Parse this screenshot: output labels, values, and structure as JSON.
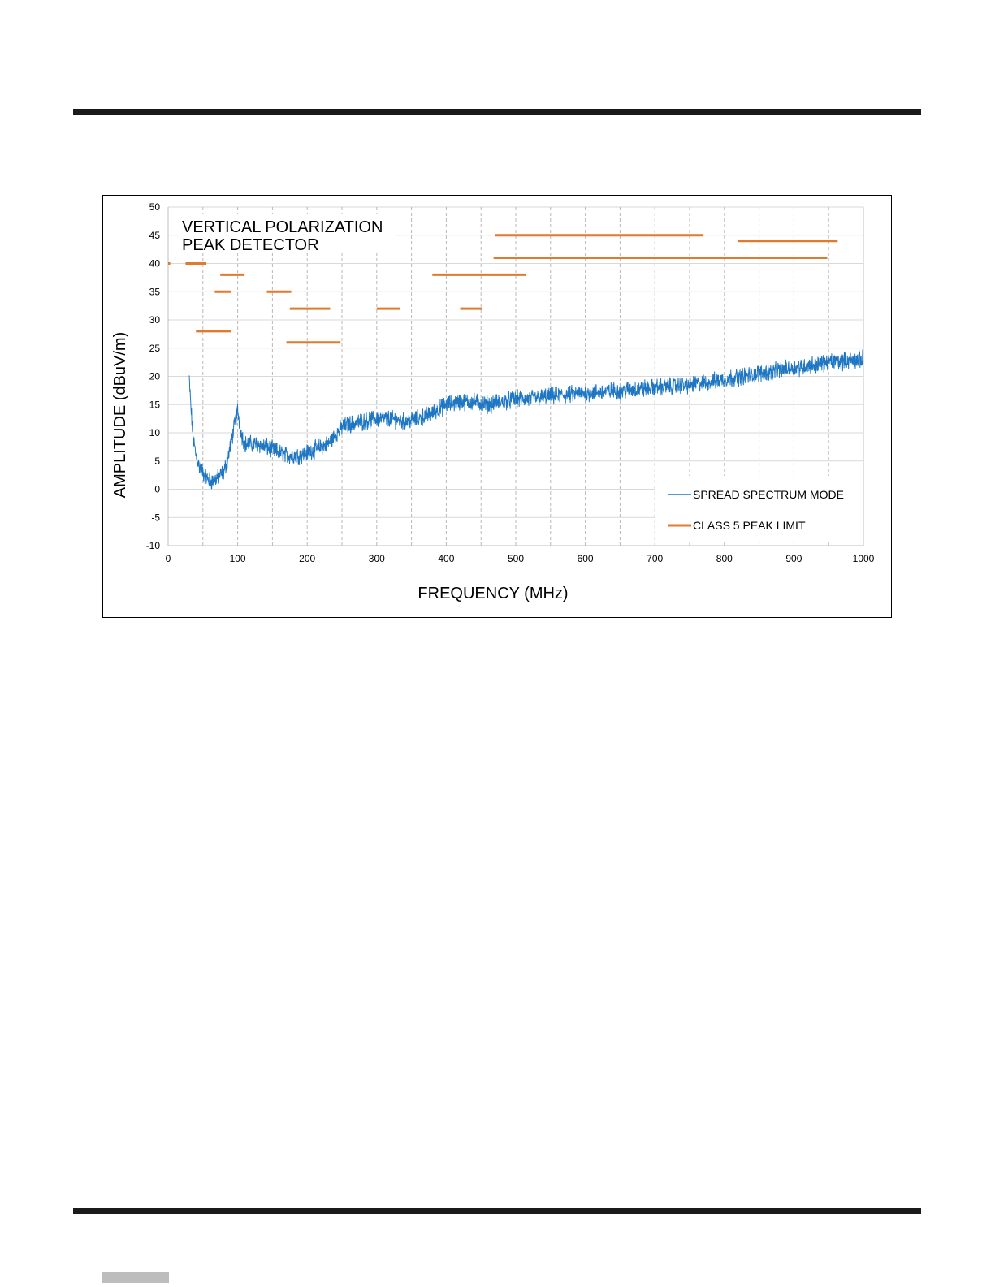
{
  "chart_data": {
    "type": "line",
    "title_lines": [
      "VERTICAL POLARIZATION",
      "PEAK DETECTOR"
    ],
    "xlabel": "FREQUENCY (MHz)",
    "ylabel": "AMPLITUDE (dBuV/m)",
    "xlim": [
      0,
      1000
    ],
    "ylim": [
      -10,
      50
    ],
    "xticks": [
      0,
      100,
      200,
      300,
      400,
      500,
      600,
      700,
      800,
      900,
      1000
    ],
    "yticks": [
      -10,
      -5,
      0,
      5,
      10,
      15,
      20,
      25,
      30,
      35,
      40,
      45,
      50
    ],
    "grid": {
      "horizontal": "solid",
      "vertical": "dashed",
      "vertical_step": 50
    },
    "legend_position": "bottom-right",
    "colors": {
      "spread": "#1f77c4",
      "limit": "#e07b2e"
    },
    "series": [
      {
        "name": "SPREAD SPECTRUM  MODE",
        "kind": "noisy-line",
        "noise_amplitude": 1.2,
        "envelope": [
          [
            30,
            20
          ],
          [
            33,
            14
          ],
          [
            36,
            9
          ],
          [
            40,
            6
          ],
          [
            45,
            4
          ],
          [
            50,
            3
          ],
          [
            55,
            2
          ],
          [
            60,
            1.5
          ],
          [
            65,
            1.5
          ],
          [
            70,
            2
          ],
          [
            75,
            2.5
          ],
          [
            80,
            3
          ],
          [
            85,
            5
          ],
          [
            90,
            8
          ],
          [
            95,
            11
          ],
          [
            100,
            14
          ],
          [
            105,
            10
          ],
          [
            110,
            8
          ],
          [
            120,
            8
          ],
          [
            130,
            8
          ],
          [
            140,
            7.5
          ],
          [
            150,
            7
          ],
          [
            160,
            6.5
          ],
          [
            170,
            6
          ],
          [
            180,
            6
          ],
          [
            190,
            6
          ],
          [
            200,
            6.5
          ],
          [
            210,
            7
          ],
          [
            220,
            7.5
          ],
          [
            230,
            8
          ],
          [
            240,
            9.5
          ],
          [
            250,
            11
          ],
          [
            260,
            11.5
          ],
          [
            280,
            12
          ],
          [
            300,
            12.5
          ],
          [
            320,
            12.5
          ],
          [
            340,
            12
          ],
          [
            360,
            12.5
          ],
          [
            380,
            13.5
          ],
          [
            400,
            15
          ],
          [
            420,
            15.5
          ],
          [
            440,
            15.5
          ],
          [
            460,
            15
          ],
          [
            480,
            15.5
          ],
          [
            500,
            16
          ],
          [
            520,
            16
          ],
          [
            550,
            16.5
          ],
          [
            600,
            17
          ],
          [
            650,
            17.5
          ],
          [
            700,
            18
          ],
          [
            750,
            18.5
          ],
          [
            780,
            19
          ],
          [
            800,
            19.5
          ],
          [
            850,
            20.5
          ],
          [
            900,
            21.5
          ],
          [
            950,
            22.5
          ],
          [
            1000,
            23
          ]
        ]
      },
      {
        "name": "CLASS 5 PEAK LIMIT",
        "kind": "segments",
        "segments": [
          {
            "x1": 0,
            "x2": 3,
            "y": 40
          },
          {
            "x1": 25,
            "x2": 55,
            "y": 40
          },
          {
            "x1": 40,
            "x2": 90,
            "y": 28
          },
          {
            "x1": 75,
            "x2": 110,
            "y": 38
          },
          {
            "x1": 67,
            "x2": 90,
            "y": 35
          },
          {
            "x1": 142,
            "x2": 177,
            "y": 35
          },
          {
            "x1": 175,
            "x2": 233,
            "y": 32
          },
          {
            "x1": 170,
            "x2": 248,
            "y": 26
          },
          {
            "x1": 300,
            "x2": 333,
            "y": 32
          },
          {
            "x1": 380,
            "x2": 515,
            "y": 38
          },
          {
            "x1": 420,
            "x2": 452,
            "y": 32
          },
          {
            "x1": 470,
            "x2": 770,
            "y": 45
          },
          {
            "x1": 468,
            "x2": 948,
            "y": 41
          },
          {
            "x1": 820,
            "x2": 963,
            "y": 44
          }
        ]
      }
    ]
  }
}
